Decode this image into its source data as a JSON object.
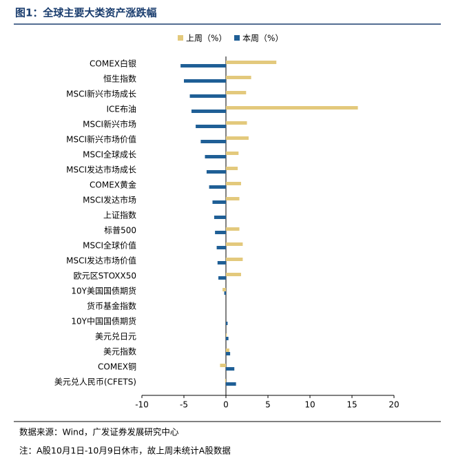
{
  "chart_data": {
    "type": "bar",
    "orientation": "horizontal",
    "title": "图1：全球主要大类资产涨跌幅",
    "categories": [
      "COMEX白银",
      "恒生指数",
      "MSCI新兴市场成长",
      "ICE布油",
      "MSCI新兴市场",
      "MSCI新兴市场价值",
      "MSCI全球成长",
      "MSCI发达市场成长",
      "COMEX黄金",
      "MSCI发达市场",
      "上证指数",
      "标普500",
      "MSCI全球价值",
      "MSCI发达市场价值",
      "欧元区STOXX50",
      "10Y美国国债期货",
      "货币基金指数",
      "10Y中国国债期货",
      "美元兑日元",
      "美元指数",
      "COMEX铜",
      "美元兑人民币(CFETS)"
    ],
    "series": [
      {
        "name": "上周（%）",
        "color": "#E3C97C",
        "values": [
          6.0,
          3.0,
          2.4,
          15.7,
          2.5,
          2.7,
          1.5,
          1.4,
          1.8,
          1.6,
          null,
          1.6,
          2.0,
          2.0,
          1.8,
          -0.4,
          0.0,
          0.0,
          0.1,
          0.4,
          -0.7,
          -0.1
        ]
      },
      {
        "name": "本周（%）",
        "color": "#1F5F96",
        "values": [
          -5.4,
          -5.0,
          -4.3,
          -4.1,
          -3.6,
          -3.0,
          -2.5,
          -2.3,
          -2.0,
          -1.6,
          -1.4,
          -1.3,
          -1.1,
          -1.0,
          -0.9,
          -0.2,
          0.0,
          0.2,
          0.3,
          0.5,
          1.0,
          1.2
        ]
      }
    ],
    "xlim": [
      -10,
      20
    ],
    "xticks": [
      -10,
      -5,
      0,
      5,
      10,
      15,
      20
    ],
    "legend": "top",
    "source": "数据来源：Wind，广发证券发展研究中心",
    "note": "注：A股10月1日-10月9日休市，故上周未统计A股数据"
  }
}
